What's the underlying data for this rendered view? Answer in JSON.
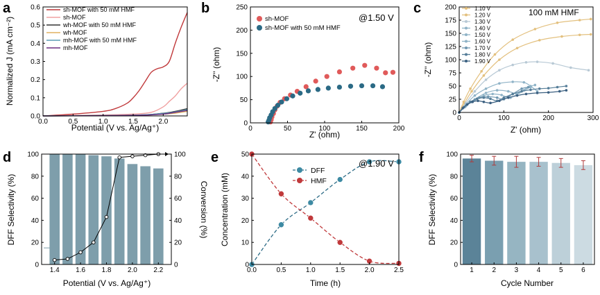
{
  "chart_data": [
    {
      "panel": "a",
      "type": "line",
      "xlabel": "Potential (V vs. Ag/Ag⁺)",
      "ylabel": "Normalized J (mA cm⁻²)",
      "xlim": [
        0.0,
        2.4
      ],
      "ylim": [
        0.0,
        0.6
      ],
      "xticks": [
        "0.0",
        "0.5",
        "1.0",
        "1.5",
        "2.0"
      ],
      "yticks": [
        "0.0",
        "0.1",
        "0.2",
        "0.3",
        "0.4",
        "0.5",
        "0.6"
      ],
      "legend": "top-left",
      "series": [
        {
          "name": "sh-MOF with 50 mM HMF",
          "color": "#c0393b",
          "x": [
            0,
            0.5,
            1.0,
            1.2,
            1.4,
            1.5,
            1.6,
            1.7,
            1.8,
            1.9,
            2.0,
            2.1,
            2.2,
            2.3,
            2.4
          ],
          "y": [
            0.0,
            0.01,
            0.025,
            0.04,
            0.07,
            0.1,
            0.14,
            0.19,
            0.24,
            0.26,
            0.27,
            0.3,
            0.4,
            0.49,
            0.57
          ]
        },
        {
          "name": "sh-MOF",
          "color": "#f0a0a0",
          "x": [
            0,
            1.0,
            1.5,
            1.8,
            2.0,
            2.1,
            2.2,
            2.3,
            2.4
          ],
          "y": [
            0.0,
            0.005,
            0.01,
            0.02,
            0.05,
            0.08,
            0.11,
            0.15,
            0.18
          ]
        },
        {
          "name": "wh-MOF with 50 mM HMF",
          "color": "#333333",
          "x": [
            0,
            1.5,
            2.0,
            2.2,
            2.4
          ],
          "y": [
            0.0,
            0.004,
            0.015,
            0.025,
            0.04
          ]
        },
        {
          "name": "wh-MOF",
          "color": "#e0b060",
          "x": [
            0,
            1.5,
            2.0,
            2.2,
            2.4
          ],
          "y": [
            0.0,
            0.003,
            0.01,
            0.015,
            0.025
          ]
        },
        {
          "name": "mh-MOF with 50 mM HMF",
          "color": "#5a9bb5",
          "x": [
            0,
            1.5,
            2.0,
            2.2,
            2.4
          ],
          "y": [
            0.0,
            0.004,
            0.014,
            0.022,
            0.035
          ]
        },
        {
          "name": "mh-MOF",
          "color": "#6a2c80",
          "x": [
            0,
            1.5,
            2.0,
            2.2,
            2.4
          ],
          "y": [
            0.0,
            0.003,
            0.01,
            0.02,
            0.03
          ]
        }
      ]
    },
    {
      "panel": "b",
      "type": "scatter",
      "title": "@1.50 V",
      "xlabel": "Z' (ohm)",
      "ylabel": "-Z'' (ohm)",
      "xlim": [
        0,
        200
      ],
      "ylim": [
        0,
        250
      ],
      "xticks": [
        "0",
        "50",
        "100",
        "150",
        "200"
      ],
      "yticks": [
        "0",
        "50",
        "100",
        "150",
        "200",
        "250"
      ],
      "legend": "top-left",
      "series": [
        {
          "name": "sh-MOF",
          "color": "#e05a5a",
          "x": [
            27,
            28,
            29,
            31,
            33,
            36,
            40,
            46,
            54,
            63,
            75,
            88,
            103,
            120,
            138,
            154,
            170,
            182,
            192
          ],
          "y": [
            2,
            7,
            13,
            20,
            28,
            36,
            44,
            52,
            60,
            68,
            78,
            90,
            100,
            110,
            118,
            124,
            118,
            108,
            109
          ]
        },
        {
          "name": "sh-MOF with 50 mM HMF",
          "color": "#2b6a85",
          "x": [
            24,
            25,
            26,
            28,
            30,
            33,
            37,
            42,
            49,
            57,
            67,
            78,
            91,
            105,
            120,
            135,
            150,
            165,
            178
          ],
          "y": [
            2,
            6,
            11,
            17,
            24,
            31,
            38,
            45,
            52,
            58,
            64,
            69,
            72,
            75,
            77,
            79,
            80,
            80,
            78
          ]
        }
      ]
    },
    {
      "panel": "c",
      "type": "line",
      "title": "100 mM HMF",
      "xlabel": "Z' (ohm)",
      "ylabel": "-Z'' (ohm)",
      "xlim": [
        0,
        300
      ],
      "ylim": [
        0,
        200
      ],
      "xticks": [
        "0",
        "100",
        "200",
        "300"
      ],
      "yticks": [
        "0",
        "25",
        "50",
        "75",
        "100",
        "125",
        "150",
        "175",
        "200"
      ],
      "legend": "top-left",
      "series": [
        {
          "name": "1.10 V",
          "color": "#e3c07e",
          "x": [
            0,
            10,
            25,
            50,
            80,
            120,
            170,
            220,
            270,
            295
          ],
          "y": [
            0,
            20,
            45,
            78,
            110,
            138,
            158,
            170,
            175,
            177
          ]
        },
        {
          "name": "1.20 V",
          "color": "#e3c07e",
          "x": [
            0,
            12,
            28,
            55,
            90,
            130,
            180,
            230,
            270,
            295
          ],
          "y": [
            0,
            18,
            40,
            70,
            100,
            122,
            137,
            144,
            147,
            148
          ]
        },
        {
          "name": "1.30 V",
          "color": "#b8c9d5",
          "x": [
            0,
            15,
            35,
            60,
            90,
            120,
            150,
            175,
            210,
            250,
            290
          ],
          "y": [
            0,
            18,
            40,
            62,
            80,
            90,
            95,
            96,
            93,
            85,
            80
          ]
        },
        {
          "name": "1.40 V",
          "color": "#8fb3c7",
          "x": [
            0,
            15,
            35,
            60,
            90,
            120,
            145,
            160,
            175
          ],
          "y": [
            0,
            15,
            32,
            45,
            55,
            58,
            57,
            50,
            40
          ]
        },
        {
          "name": "1.50 V",
          "color": "#8fb3c7",
          "x": [
            0,
            15,
            35,
            60,
            85,
            110,
            130,
            145,
            160
          ],
          "y": [
            0,
            12,
            25,
            37,
            42,
            40,
            35,
            42,
            48
          ]
        },
        {
          "name": "1.60 V",
          "color": "#8fb3c7",
          "x": [
            0,
            15,
            35,
            55,
            75,
            95,
            115,
            135,
            155,
            170
          ],
          "y": [
            0,
            12,
            24,
            32,
            35,
            33,
            28,
            38,
            48,
            52
          ]
        },
        {
          "name": "1.70 V",
          "color": "#6f97b0",
          "x": [
            0,
            12,
            28,
            45,
            65,
            85,
            100,
            120,
            140,
            155
          ],
          "y": [
            0,
            10,
            20,
            28,
            30,
            28,
            25,
            35,
            45,
            48
          ]
        },
        {
          "name": "1.80 V",
          "color": "#557d98",
          "x": [
            0,
            10,
            25,
            40,
            55,
            70,
            85,
            100,
            120,
            140,
            160,
            180,
            200,
            220,
            240
          ],
          "y": [
            0,
            10,
            20,
            26,
            28,
            26,
            22,
            28,
            35,
            40,
            43,
            45,
            46,
            48,
            50
          ]
        },
        {
          "name": "1.90 V",
          "color": "#3a5f80",
          "x": [
            0,
            8,
            18,
            30,
            42,
            55,
            70,
            90,
            110,
            130,
            150,
            175,
            200,
            225,
            240
          ],
          "y": [
            0,
            8,
            15,
            20,
            22,
            20,
            18,
            22,
            28,
            32,
            35,
            37,
            38,
            40,
            42
          ]
        }
      ]
    },
    {
      "panel": "d",
      "type": "bar",
      "xlabel": "Potential (V vs. Ag/Ag⁺)",
      "ylabel": "DFF Selectivity (%)",
      "ylabel_right": "Conversion (%)",
      "xlim": [
        1.3,
        2.3
      ],
      "ylim": [
        0,
        100
      ],
      "xticks": [
        "1.4",
        "1.6",
        "1.8",
        "2.0",
        "2.2"
      ],
      "yticks": [
        "0",
        "20",
        "40",
        "60",
        "80",
        "100"
      ],
      "series": [
        {
          "name": "DFF Selectivity",
          "color": "#7e9eab",
          "x": [
            1.4,
            1.5,
            1.6,
            1.7,
            1.8,
            1.9,
            2.0,
            2.1,
            2.2
          ],
          "values": [
            100,
            100,
            100,
            99,
            98,
            96,
            91,
            89,
            87
          ]
        },
        {
          "name": "Conversion",
          "color": "#000000",
          "x": [
            1.4,
            1.5,
            1.6,
            1.7,
            1.8,
            1.9,
            2.0,
            2.1,
            2.2
          ],
          "values": [
            4,
            5,
            11,
            20,
            43,
            97,
            98,
            99,
            100
          ]
        }
      ]
    },
    {
      "panel": "e",
      "type": "line",
      "title": "@1.90 V",
      "xlabel": "Time (h)",
      "ylabel": "Concentration (mM)",
      "xlim": [
        0.0,
        2.5
      ],
      "ylim": [
        0,
        50
      ],
      "xticks": [
        "0.0",
        "0.5",
        "1.0",
        "1.5",
        "2.0",
        "2.5"
      ],
      "yticks": [
        "0",
        "10",
        "20",
        "30",
        "40",
        "50"
      ],
      "legend": "top-center",
      "series": [
        {
          "name": "DFF",
          "color": "#2b6a85",
          "x": [
            0.0,
            0.5,
            1.0,
            1.5,
            2.0,
            2.5
          ],
          "y": [
            0,
            18,
            28,
            38.5,
            46.5,
            46.5
          ]
        },
        {
          "name": "HMF",
          "color": "#c0393b",
          "x": [
            0.0,
            0.5,
            1.0,
            1.5,
            2.0,
            2.5
          ],
          "y": [
            50,
            32,
            21,
            10,
            1.5,
            0.5
          ]
        }
      ]
    },
    {
      "panel": "f",
      "type": "bar",
      "xlabel": "Cycle Number",
      "ylabel": "DFF Selectivity (%)",
      "ylim": [
        0,
        100
      ],
      "categories": [
        "1",
        "2",
        "3",
        "4",
        "5",
        "6"
      ],
      "yticks": [
        "0",
        "20",
        "40",
        "60",
        "80",
        "100"
      ],
      "values": [
        96,
        94,
        93,
        93,
        92,
        90
      ],
      "errors": [
        3,
        4,
        5,
        4,
        4,
        4
      ],
      "colors": [
        "#5b8398",
        "#7a9fb0",
        "#96b5c2",
        "#a8c1cd",
        "#bdd0d9",
        "#ccdbe2"
      ]
    }
  ],
  "panel_labels": [
    "a",
    "b",
    "c",
    "d",
    "e",
    "f"
  ]
}
